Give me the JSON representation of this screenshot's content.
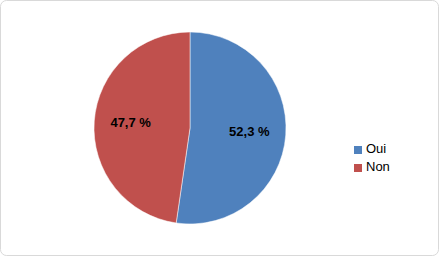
{
  "chart_data": {
    "type": "pie",
    "categories": [
      "Oui",
      "Non"
    ],
    "values": [
      52.3,
      47.7
    ],
    "value_labels": [
      "52,3 %",
      "47,7 %"
    ],
    "colors": [
      "#4f81bd",
      "#c0504d"
    ],
    "data_labels": true,
    "legend": "right"
  }
}
